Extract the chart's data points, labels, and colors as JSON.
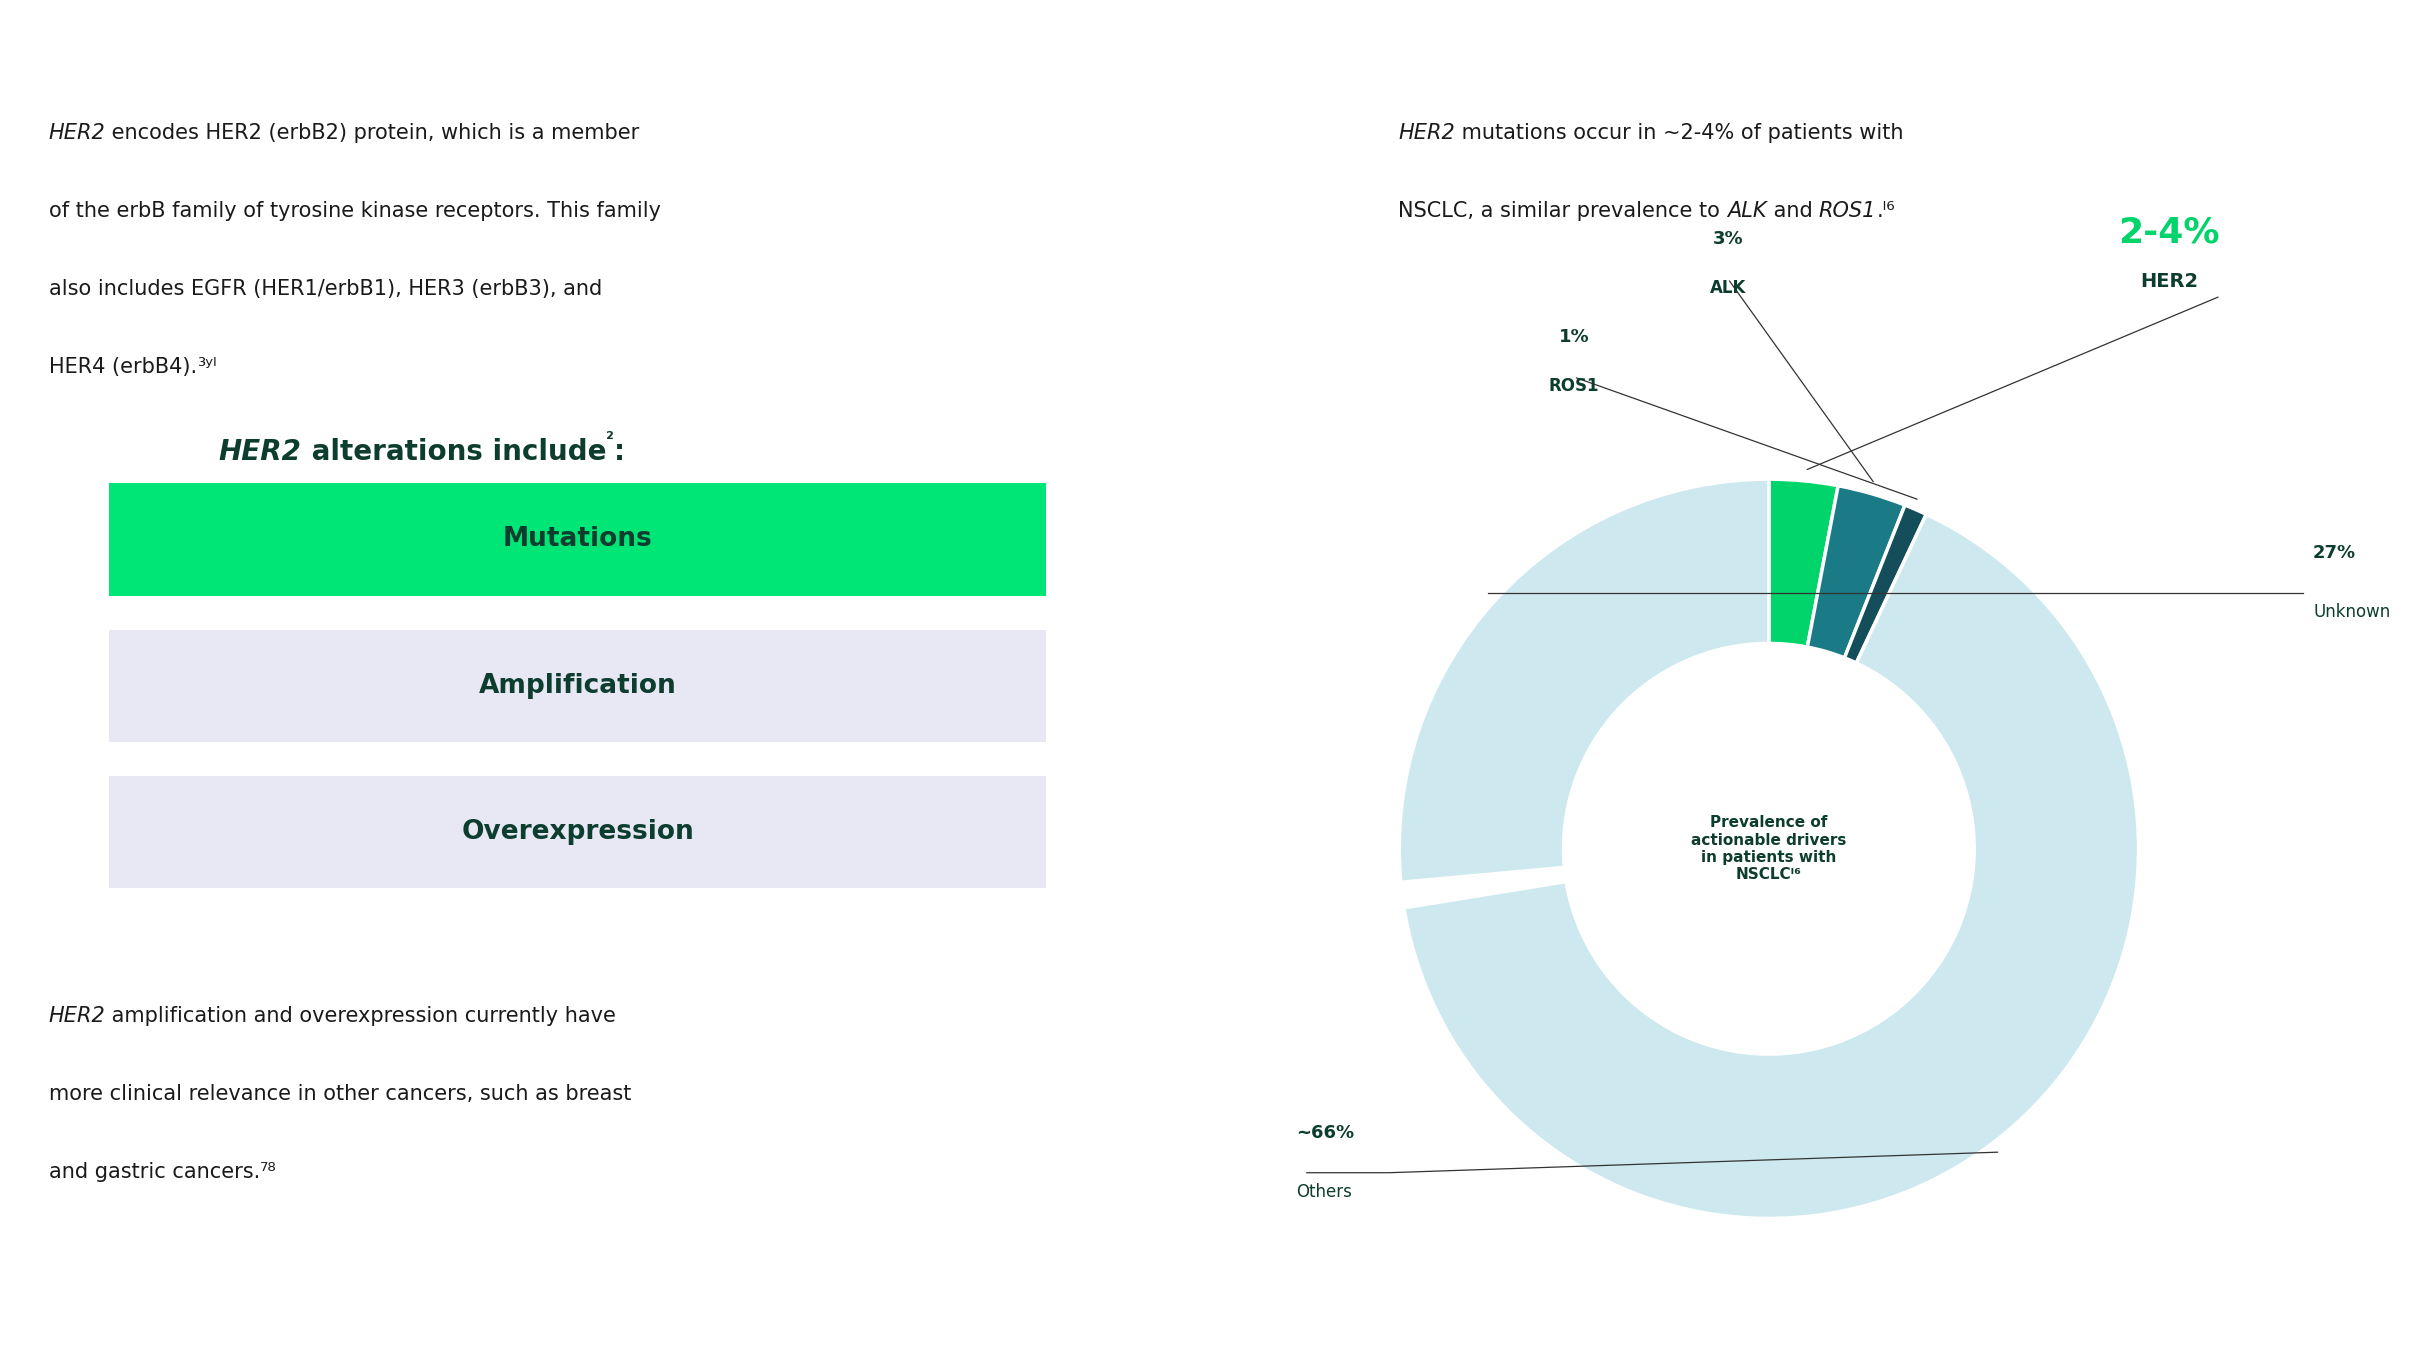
{
  "bg_color": "#ffffff",
  "black_text_color": "#1a1a1a",
  "dark_text_color": "#0d3d2e",
  "green_color": "#00e676",
  "donut_green": "#00d46a",
  "donut_teal_light": "#1a7a85",
  "donut_teal_dark": "#144e5a",
  "donut_light_blue": "#cde8ef",
  "font_size_body": 15,
  "font_size_title": 20,
  "font_size_box": 19,
  "font_size_big_pct": 26,
  "font_size_label": 13,
  "pie_values": [
    3,
    3,
    1,
    66,
    27
  ],
  "pie_colors": [
    "#00d46a",
    "#1a7a85",
    "#144e5a",
    "#cde8ef",
    "#cde8ef"
  ],
  "pie_labels": [
    "HER2",
    "ALK",
    "ROS1",
    "Others",
    "Unknown"
  ],
  "pie_pcts": [
    "2-4%",
    "3%",
    "1%",
    "~66%",
    "27%"
  ],
  "center_text": "Prevalence of\nactionable drivers\nin patients with\nNSCLCᴵ⁶"
}
